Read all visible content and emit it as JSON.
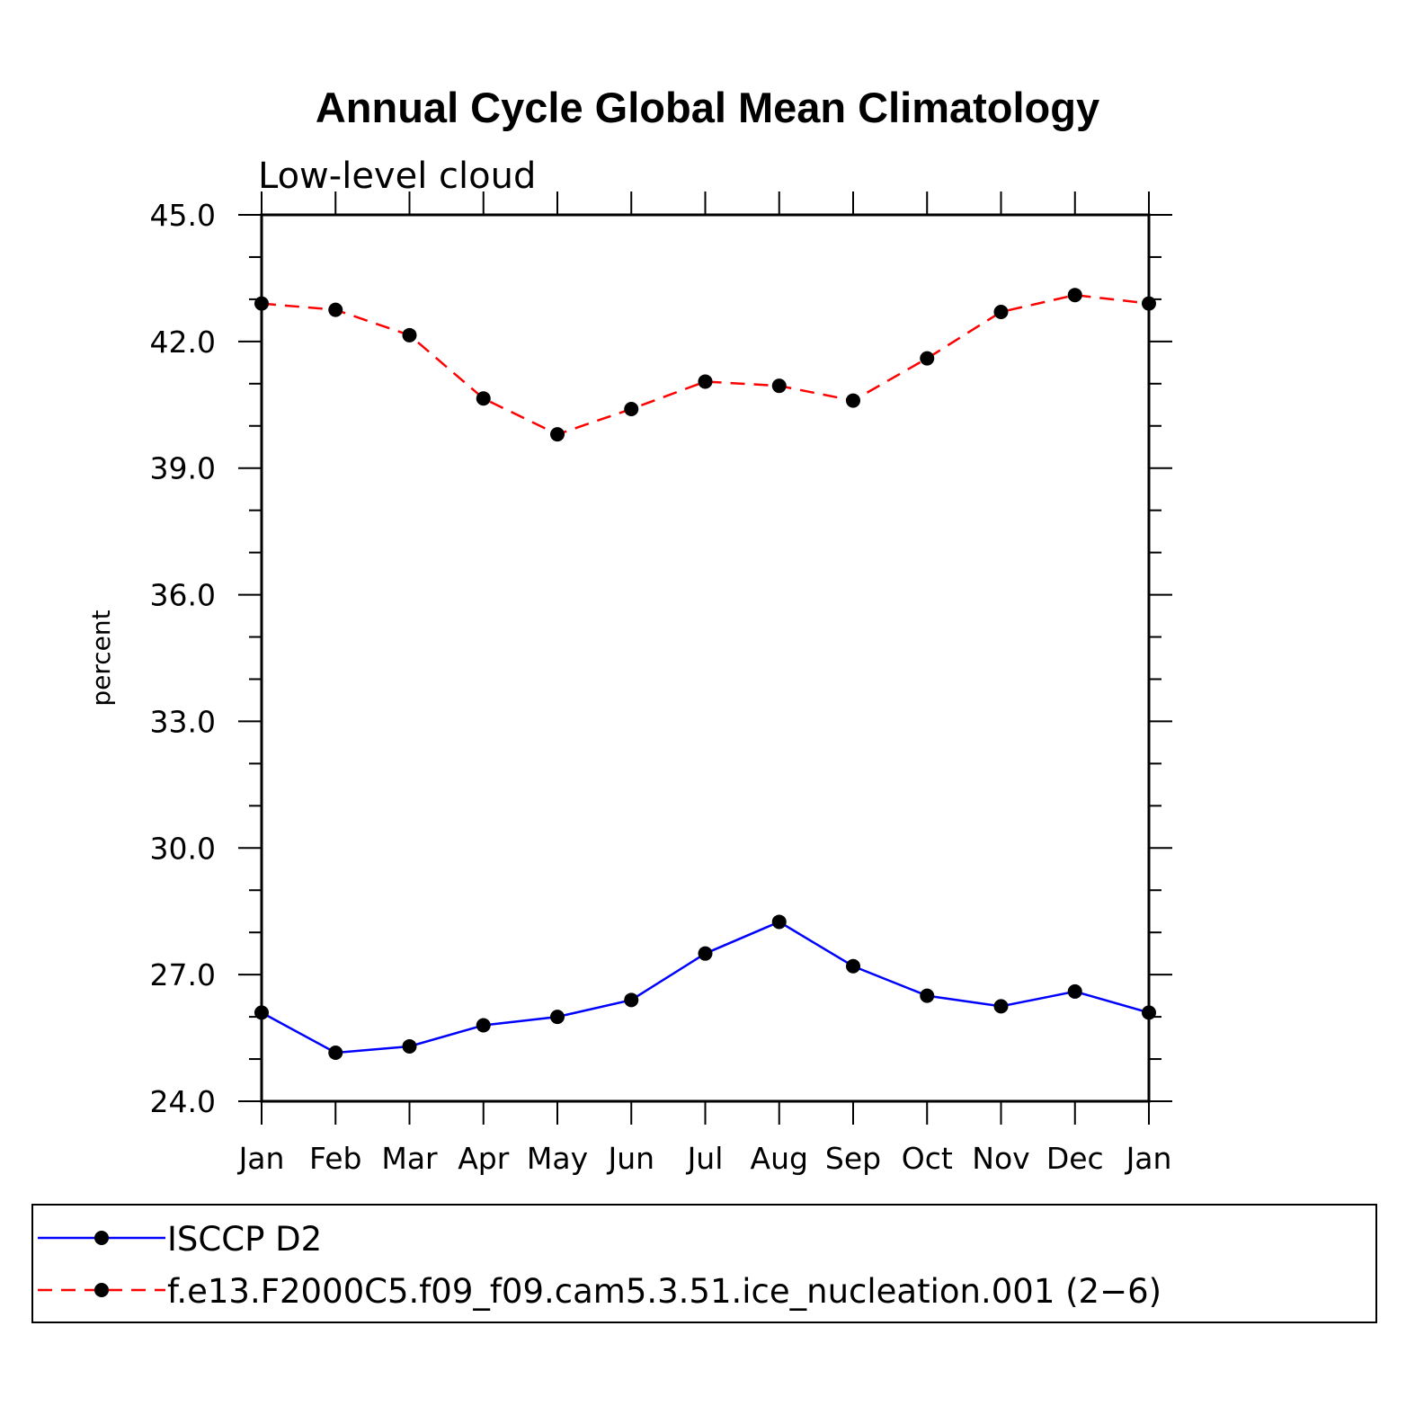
{
  "chart_data": {
    "type": "line",
    "title": "Annual Cycle Global Mean Climatology",
    "subtitle": "Low-level cloud",
    "ylabel": "percent",
    "xlabel": "",
    "categories": [
      "Jan",
      "Feb",
      "Mar",
      "Apr",
      "May",
      "Jun",
      "Jul",
      "Aug",
      "Sep",
      "Oct",
      "Nov",
      "Dec",
      "Jan"
    ],
    "ylim": [
      24.0,
      45.0
    ],
    "yticks": [
      "24.0",
      "27.0",
      "30.0",
      "33.0",
      "36.0",
      "39.0",
      "42.0",
      "45.0"
    ],
    "grid": false,
    "legend_position": "bottom",
    "series": [
      {
        "name": "ISCCP D2",
        "color": "#0000ff",
        "dash": "solid",
        "marker": "filled-circle",
        "values": [
          26.1,
          25.15,
          25.3,
          25.8,
          26.0,
          26.4,
          27.5,
          28.25,
          27.2,
          26.5,
          26.25,
          26.6,
          26.1
        ]
      },
      {
        "name": "f.e13.F2000C5.f09_f09.cam5.3.51.ice_nucleation.001 (2−6)",
        "color": "#ff0000",
        "dash": "dashed",
        "marker": "filled-circle",
        "values": [
          42.9,
          42.75,
          42.15,
          40.65,
          39.8,
          40.4,
          41.05,
          40.95,
          40.6,
          41.6,
          42.7,
          43.1,
          42.9
        ]
      }
    ]
  }
}
